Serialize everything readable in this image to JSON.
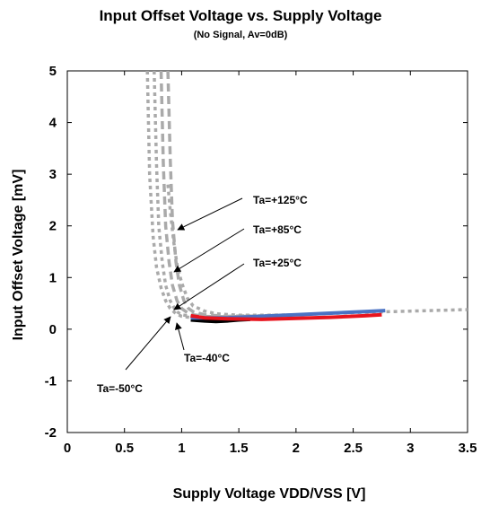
{
  "chart_data": {
    "type": "line",
    "title": "Input Offset Voltage vs. Supply Voltage",
    "subtitle": "(No Signal, Av=0dB)",
    "xlabel": "Supply Voltage VDD/VSS [V]",
    "ylabel": "Input Offset Voltage [mV]",
    "xlim": [
      0,
      3.5
    ],
    "ylim": [
      -2,
      5
    ],
    "grid": false,
    "x_ticks": [
      "0",
      "0.5",
      "1",
      "1.5",
      "2",
      "2.5",
      "3",
      "3.5"
    ],
    "y_ticks": [
      "-2",
      "-1",
      "0",
      "1",
      "2",
      "3",
      "4",
      "5"
    ],
    "annotations": [
      "Ta=+125°C",
      "Ta=+85°C",
      "Ta=+25°C",
      "Ta=-40°C",
      "Ta=-50°C"
    ],
    "series": [
      {
        "name": "Ta=-50°C",
        "color": "#aaaaaa",
        "dash": "dotted",
        "x": [
          0.7,
          0.72,
          0.75,
          0.78,
          0.82,
          0.86,
          0.9,
          0.95,
          1.0,
          1.1,
          1.2,
          1.4,
          1.7,
          2.0,
          2.5,
          3.0,
          3.5
        ],
        "y": [
          5.0,
          3.0,
          1.8,
          1.2,
          0.8,
          0.55,
          0.4,
          0.3,
          0.25,
          0.22,
          0.22,
          0.24,
          0.26,
          0.28,
          0.32,
          0.35,
          0.38
        ]
      },
      {
        "name": "Ta=-40°C",
        "color": "#aaaaaa",
        "dash": "dotted",
        "x": [
          0.76,
          0.78,
          0.8,
          0.83,
          0.86,
          0.9,
          0.95,
          1.0,
          1.1,
          1.2,
          1.4,
          1.6
        ],
        "y": [
          5.0,
          3.2,
          2.0,
          1.3,
          0.85,
          0.55,
          0.35,
          0.28,
          0.24,
          0.23,
          0.24,
          0.25
        ]
      },
      {
        "name": "Ta=+25°C",
        "color": "#aaaaaa",
        "dash": "dashed",
        "x": [
          0.82,
          0.84,
          0.86,
          0.89,
          0.92,
          0.96,
          1.0,
          1.05,
          1.1,
          1.2,
          1.4,
          1.6
        ],
        "y": [
          5.0,
          3.2,
          2.0,
          1.3,
          0.85,
          0.55,
          0.4,
          0.32,
          0.28,
          0.25,
          0.24,
          0.25
        ]
      },
      {
        "name": "Ta=+85°C",
        "color": "#aaaaaa",
        "dash": "dashed",
        "x": [
          0.88,
          0.9,
          0.92,
          0.95,
          0.98,
          1.02,
          1.06,
          1.1,
          1.2,
          1.4,
          1.6
        ],
        "y": [
          5.0,
          3.3,
          2.1,
          1.3,
          0.85,
          0.55,
          0.4,
          0.34,
          0.28,
          0.25,
          0.26
        ]
      },
      {
        "name": "Ta=+125°C",
        "color": "#aaaaaa",
        "dash": "dotted",
        "x": [
          0.88,
          0.9,
          0.93,
          0.96,
          1.0,
          1.05,
          1.1,
          1.2,
          1.3,
          1.5,
          1.7,
          2.0
        ],
        "y": [
          2.8,
          2.3,
          1.7,
          1.25,
          0.9,
          0.6,
          0.45,
          0.35,
          0.3,
          0.27,
          0.27,
          0.28
        ]
      },
      {
        "name": "black",
        "color": "#000000",
        "dash": "solid",
        "x": [
          1.08,
          1.2,
          1.3,
          1.4,
          1.5,
          1.6
        ],
        "y": [
          0.18,
          0.16,
          0.15,
          0.16,
          0.18,
          0.19
        ]
      },
      {
        "name": "blue",
        "color": "#4a72c4",
        "dash": "solid",
        "x": [
          1.08,
          1.4,
          1.7,
          2.0,
          2.3,
          2.6,
          2.78
        ],
        "y": [
          0.22,
          0.22,
          0.25,
          0.28,
          0.31,
          0.34,
          0.36
        ]
      },
      {
        "name": "red",
        "color": "#e8141e",
        "dash": "solid",
        "x": [
          1.08,
          1.2,
          1.4,
          1.7,
          2.0,
          2.3,
          2.6,
          2.75
        ],
        "y": [
          0.26,
          0.22,
          0.2,
          0.19,
          0.21,
          0.23,
          0.26,
          0.28
        ]
      }
    ]
  }
}
